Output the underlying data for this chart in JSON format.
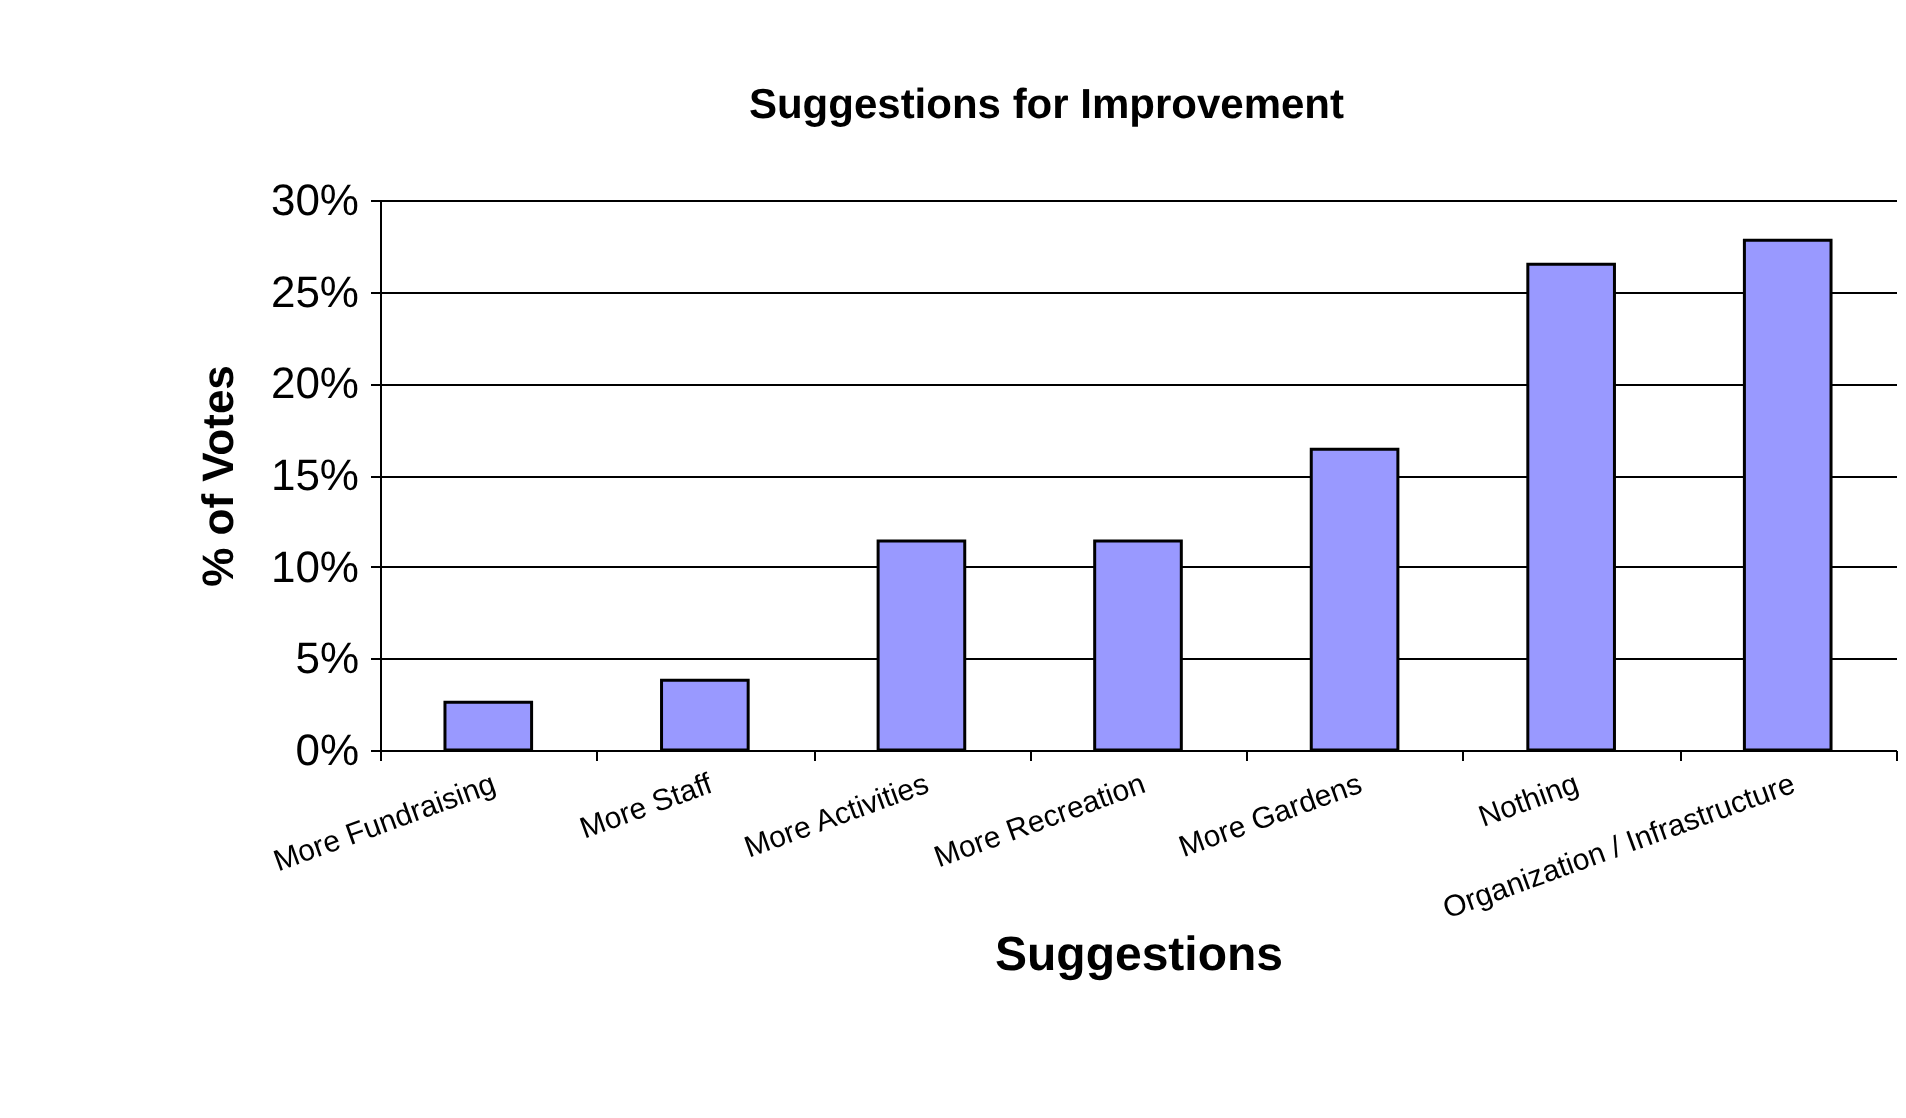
{
  "chart_data": {
    "type": "bar",
    "title": "Suggestions for Improvement",
    "xlabel": "Suggestions",
    "ylabel": "% of Votes",
    "categories": [
      "More Fundraising",
      "More Staff",
      "More Activities",
      "More Recreation",
      "More Gardens",
      "Nothing",
      "Organization / Infrastructure"
    ],
    "values": [
      2.6,
      3.8,
      11.4,
      11.4,
      16.4,
      26.5,
      27.8
    ],
    "color": "#9999ff",
    "ylim": [
      0,
      30
    ],
    "yticks": [
      {
        "value": 0,
        "label": "0%"
      },
      {
        "value": 5,
        "label": "5%"
      },
      {
        "value": 10,
        "label": "10%"
      },
      {
        "value": 15,
        "label": "15%"
      },
      {
        "value": 20,
        "label": "20%"
      },
      {
        "value": 25,
        "label": "25%"
      },
      {
        "value": 30,
        "label": "30%"
      }
    ],
    "grid": "y"
  }
}
